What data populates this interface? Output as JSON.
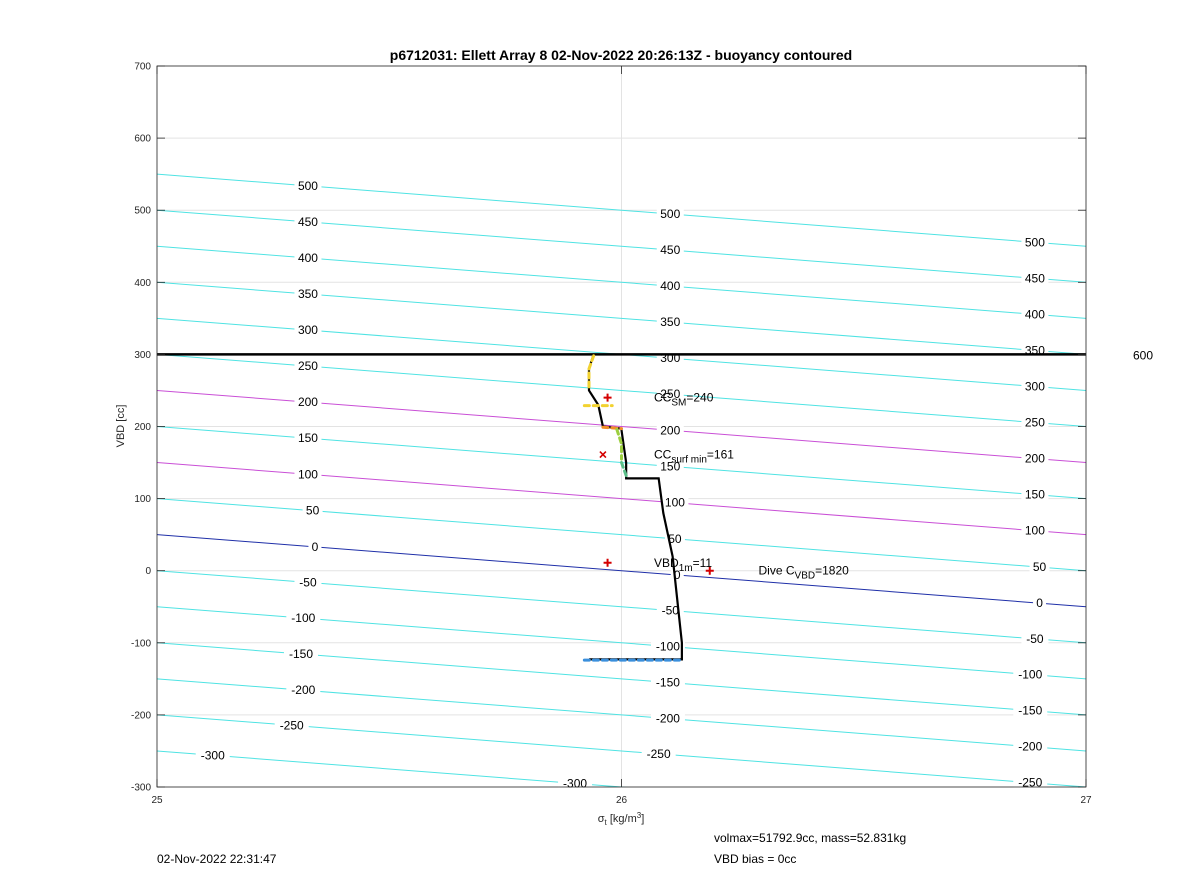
{
  "chart_data": {
    "type": "line",
    "title": "p6712031: Ellett Array 8 02-Nov-2022 20:26:13Z - buoyancy contoured",
    "xlabel_main": "σ",
    "xlabel_sub": "t",
    "xlabel_rest": " [kg/m",
    "xlabel_sup": "3",
    "xlabel_end": "]",
    "ylabel": "VBD [cc]",
    "xlim": [
      25,
      27
    ],
    "ylim": [
      -300,
      700
    ],
    "x_ticks": [
      "25",
      "26",
      "27"
    ],
    "y_ticks": [
      "-300",
      "-200",
      "-100",
      "0",
      "100",
      "200",
      "300",
      "400",
      "500",
      "600",
      "700"
    ],
    "grid": true,
    "contours": {
      "slope": -50,
      "levels": [
        -300,
        -250,
        -200,
        -150,
        -100,
        -50,
        0,
        50,
        100,
        150,
        200,
        250,
        300,
        350,
        400,
        450,
        500
      ],
      "highlight_levels": [
        100,
        200
      ],
      "zero_level": 0,
      "label_x": [
        25.3,
        26.11,
        26.89
      ],
      "colors": {
        "normal": "#4fe3e3",
        "highlight": "#c94fd6",
        "zero": "#1f2fa8"
      }
    },
    "contour_labels": [
      {
        "x": 25.325,
        "y": 500,
        "text": "500"
      },
      {
        "x": 25.325,
        "y": 450,
        "text": "450"
      },
      {
        "x": 25.325,
        "y": 400,
        "text": "400"
      },
      {
        "x": 25.325,
        "y": 350,
        "text": "350"
      },
      {
        "x": 25.325,
        "y": 300,
        "text": "300"
      },
      {
        "x": 25.325,
        "y": 250,
        "text": "250"
      },
      {
        "x": 25.325,
        "y": 200,
        "text": "200"
      },
      {
        "x": 25.325,
        "y": 150,
        "text": "150"
      },
      {
        "x": 25.325,
        "y": 100,
        "text": "100"
      },
      {
        "x": 25.335,
        "y": 50,
        "text": "50"
      },
      {
        "x": 25.34,
        "y": 0,
        "text": "0"
      },
      {
        "x": 25.325,
        "y": -50,
        "text": "-50"
      },
      {
        "x": 25.315,
        "y": -100,
        "text": "-100"
      },
      {
        "x": 25.31,
        "y": -150,
        "text": "-150"
      },
      {
        "x": 25.315,
        "y": -200,
        "text": "-200"
      },
      {
        "x": 25.29,
        "y": -250,
        "text": "-250"
      },
      {
        "x": 25.12,
        "y": -300,
        "text": "-300"
      },
      {
        "x": 26.105,
        "y": 500,
        "text": "500"
      },
      {
        "x": 26.105,
        "y": 450,
        "text": "450"
      },
      {
        "x": 26.105,
        "y": 400,
        "text": "400"
      },
      {
        "x": 26.105,
        "y": 350,
        "text": "350"
      },
      {
        "x": 26.105,
        "y": 300,
        "text": "300"
      },
      {
        "x": 26.105,
        "y": 250,
        "text": "250"
      },
      {
        "x": 26.105,
        "y": 200,
        "text": "200"
      },
      {
        "x": 26.105,
        "y": 150,
        "text": "150"
      },
      {
        "x": 26.115,
        "y": 100,
        "text": "100"
      },
      {
        "x": 26.115,
        "y": 50,
        "text": "50"
      },
      {
        "x": 26.12,
        "y": 0,
        "text": "0"
      },
      {
        "x": 26.105,
        "y": -50,
        "text": "-50"
      },
      {
        "x": 26.1,
        "y": -100,
        "text": "-100"
      },
      {
        "x": 26.1,
        "y": -150,
        "text": "-150"
      },
      {
        "x": 26.1,
        "y": -200,
        "text": "-200"
      },
      {
        "x": 26.08,
        "y": -250,
        "text": "-250"
      },
      {
        "x": 25.9,
        "y": -300,
        "text": "-300"
      },
      {
        "x": 26.89,
        "y": 500,
        "text": "500"
      },
      {
        "x": 26.89,
        "y": 450,
        "text": "450"
      },
      {
        "x": 26.89,
        "y": 400,
        "text": "400"
      },
      {
        "x": 26.89,
        "y": 350,
        "text": "350"
      },
      {
        "x": 26.89,
        "y": 300,
        "text": "300"
      },
      {
        "x": 26.89,
        "y": 250,
        "text": "250"
      },
      {
        "x": 26.89,
        "y": 200,
        "text": "200"
      },
      {
        "x": 26.89,
        "y": 150,
        "text": "150"
      },
      {
        "x": 26.89,
        "y": 100,
        "text": "100"
      },
      {
        "x": 26.9,
        "y": 50,
        "text": "50"
      },
      {
        "x": 26.9,
        "y": 0,
        "text": "0"
      },
      {
        "x": 26.89,
        "y": -50,
        "text": "-50"
      },
      {
        "x": 26.88,
        "y": -100,
        "text": "-100"
      },
      {
        "x": 26.88,
        "y": -150,
        "text": "-150"
      },
      {
        "x": 26.88,
        "y": -200,
        "text": "-200"
      },
      {
        "x": 26.88,
        "y": -250,
        "text": "-250"
      }
    ],
    "max_vbd_line": {
      "y": 300,
      "label": "600"
    },
    "series": [
      {
        "kind": "profile",
        "color": "#000000",
        "x": [
          25.94,
          25.93,
          25.93,
          25.95,
          25.96,
          26.0,
          26.0,
          26.01,
          26.01,
          26.08,
          26.09,
          26.11,
          26.12,
          26.13,
          26.13,
          26.02,
          25.93
        ],
        "y": [
          300,
          280,
          250,
          230,
          200,
          197,
          195,
          150,
          128,
          128,
          80,
          20,
          -40,
          -100,
          -123,
          -123,
          -123
        ]
      }
    ],
    "observation_segments": [
      {
        "color": "#f2d230",
        "x": [
          25.94,
          25.93,
          25.93
        ],
        "y": [
          298,
          280,
          255
        ]
      },
      {
        "color": "#f2d230",
        "x": [
          25.92,
          25.98
        ],
        "y": [
          229,
          229
        ]
      },
      {
        "color": "#f28c28",
        "x": [
          25.96,
          26.0
        ],
        "y": [
          199,
          197
        ]
      },
      {
        "color": "#9ccf40",
        "x": [
          25.99,
          26.0,
          26.0
        ],
        "y": [
          196,
          176,
          155
        ]
      },
      {
        "color": "#5bbf8a",
        "x": [
          26.0,
          26.01
        ],
        "y": [
          150,
          132
        ]
      },
      {
        "color": "#3a8fdc",
        "x": [
          25.92,
          26.13
        ],
        "y": [
          -124,
          -124
        ]
      }
    ],
    "markers": [
      {
        "x": 25.97,
        "y": 240,
        "symbol": "+",
        "color": "#d40000"
      },
      {
        "x": 25.96,
        "y": 161,
        "symbol": "x",
        "color": "#d40000"
      },
      {
        "x": 25.97,
        "y": 11,
        "symbol": "+",
        "color": "#d40000"
      },
      {
        "x": 26.19,
        "y": 0,
        "symbol": "+",
        "color": "#d40000"
      }
    ],
    "annotations": [
      {
        "x": 26.07,
        "y": 240,
        "main": "CC",
        "sub": "SM",
        "rest": "=240"
      },
      {
        "x": 26.07,
        "y": 161,
        "main": "CC",
        "sub": "surf min",
        "rest": "=161"
      },
      {
        "x": 26.07,
        "y": 11,
        "main": "VBD",
        "sub": "1m",
        "rest": "=11"
      },
      {
        "x": 26.295,
        "y": 0,
        "main": "Dive C",
        "sub": "VBD",
        "rest": "=1820"
      }
    ]
  },
  "footer": {
    "timestamp": "02-Nov-2022 22:31:47",
    "volmax": "volmax=51792.9cc, mass=52.831kg",
    "vbd_bias": "VBD bias = 0cc"
  }
}
